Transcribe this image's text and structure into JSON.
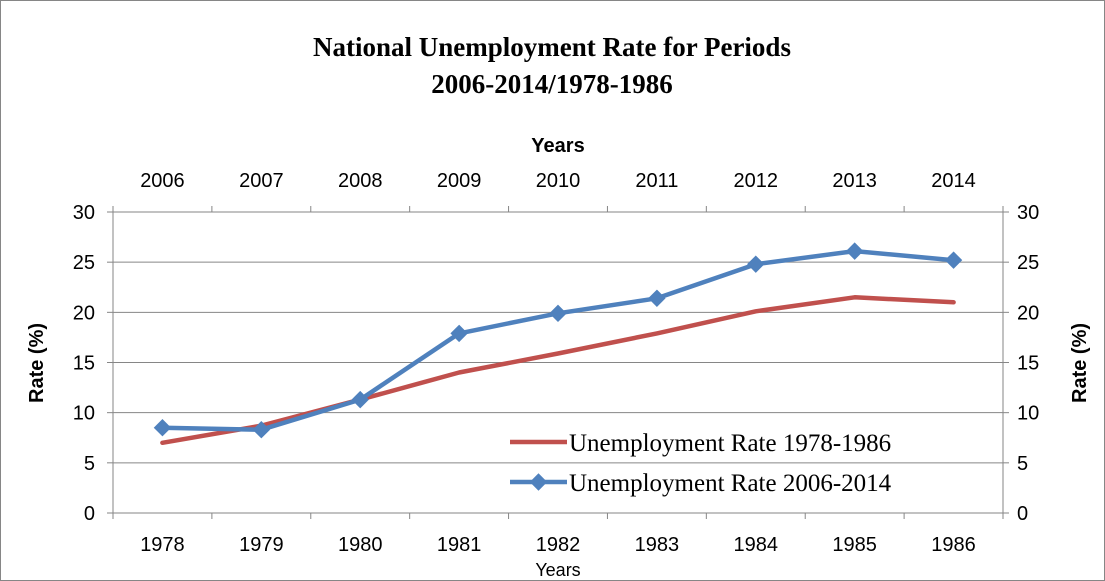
{
  "chart_data": {
    "type": "line",
    "title_line1": "National Unemployment Rate for Periods",
    "title_line2": "2006-2014/1978-1986",
    "x_bottom": {
      "categories": [
        "1978",
        "1979",
        "1980",
        "1981",
        "1982",
        "1983",
        "1984",
        "1985",
        "1986"
      ],
      "label": "Years"
    },
    "x_top": {
      "categories": [
        "2006",
        "2007",
        "2008",
        "2009",
        "2010",
        "2011",
        "2012",
        "2013",
        "2014"
      ],
      "label": "Years"
    },
    "y_left": {
      "label": "Rate (%)",
      "ticks": [
        "0",
        "5",
        "10",
        "15",
        "20",
        "25",
        "30"
      ],
      "ylim": [
        0,
        30
      ]
    },
    "y_right": {
      "label": "Rate (%)",
      "ticks": [
        "0",
        "5",
        "10",
        "15",
        "20",
        "25",
        "30"
      ],
      "ylim": [
        0,
        30
      ]
    },
    "grid": "horizontal",
    "legend_position": "bottom-right",
    "series": [
      {
        "name": "Unemployment Rate 1978-1986",
        "color": "#c0504d",
        "marker": "none",
        "axis": "bottom",
        "values": [
          7.0,
          8.7,
          11.3,
          14.0,
          15.9,
          17.9,
          20.1,
          21.5,
          21.0
        ]
      },
      {
        "name": "Unemployment Rate 2006-2014",
        "color": "#4f81bd",
        "marker": "diamond",
        "axis": "top",
        "values": [
          8.5,
          8.3,
          11.3,
          17.9,
          19.9,
          21.4,
          24.8,
          26.1,
          25.2
        ]
      }
    ]
  }
}
